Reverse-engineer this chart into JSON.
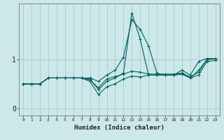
{
  "xlabel": "Humidex (Indice chaleur)",
  "background_color": "#cce8e8",
  "grid_color": "#aacccc",
  "line_color": "#006060",
  "x_values": [
    0,
    1,
    2,
    3,
    4,
    5,
    6,
    7,
    8,
    9,
    10,
    11,
    12,
    13,
    14,
    15,
    16,
    17,
    18,
    19,
    20,
    21,
    22,
    23
  ],
  "series": [
    [
      0.5,
      0.5,
      0.5,
      0.62,
      0.62,
      0.62,
      0.62,
      0.62,
      0.62,
      0.55,
      0.68,
      0.78,
      1.05,
      1.82,
      1.62,
      1.28,
      0.72,
      0.68,
      0.68,
      0.78,
      0.68,
      0.96,
      1.02,
      1.02
    ],
    [
      0.5,
      0.5,
      0.5,
      0.62,
      0.62,
      0.62,
      0.62,
      0.62,
      0.6,
      0.38,
      0.55,
      0.62,
      0.72,
      1.95,
      1.42,
      0.68,
      0.68,
      0.68,
      0.68,
      0.72,
      0.62,
      0.78,
      1.0,
      1.02
    ],
    [
      0.5,
      0.5,
      0.5,
      0.62,
      0.62,
      0.62,
      0.62,
      0.62,
      0.58,
      0.42,
      0.6,
      0.65,
      0.7,
      0.76,
      0.74,
      0.7,
      0.7,
      0.7,
      0.7,
      0.72,
      0.64,
      0.74,
      1.0,
      1.02
    ],
    [
      0.5,
      0.5,
      0.5,
      0.62,
      0.62,
      0.62,
      0.62,
      0.62,
      0.55,
      0.28,
      0.44,
      0.5,
      0.6,
      0.66,
      0.64,
      0.68,
      0.68,
      0.68,
      0.68,
      0.7,
      0.62,
      0.68,
      0.96,
      0.98
    ]
  ],
  "ylim": [
    -0.15,
    2.15
  ],
  "yticks": [
    0,
    1
  ],
  "xlim": [
    -0.5,
    23.5
  ],
  "xticks": [
    0,
    1,
    2,
    3,
    4,
    5,
    6,
    7,
    8,
    9,
    10,
    11,
    12,
    13,
    14,
    15,
    16,
    17,
    18,
    19,
    20,
    21,
    22,
    23
  ],
  "spine_color": "#777777"
}
